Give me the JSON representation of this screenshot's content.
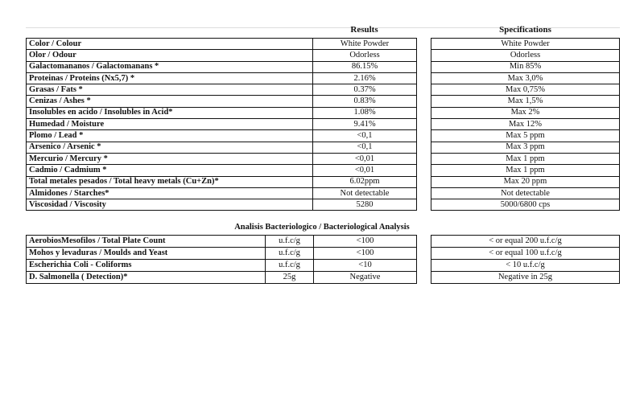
{
  "headers": {
    "results": "Results",
    "specifications": "Specifications"
  },
  "physchem": [
    {
      "parameter": "Color / Colour",
      "result": "White Powder",
      "spec": "White Powder"
    },
    {
      "parameter": "Olor  /  Odour",
      "result": "Odorless",
      "spec": "Odorless"
    },
    {
      "parameter": "Galactomananos / Galactomanans *",
      "result": "86.15%",
      "spec": "Min 85%"
    },
    {
      "parameter": "Proteinas / Proteins (Nx5,7) *",
      "result": "2.16%",
      "spec": "Max 3,0%"
    },
    {
      "parameter": "Grasas / Fats *",
      "result": "0.37%",
      "spec": "Max 0,75%"
    },
    {
      "parameter": "Cenizas / Ashes *",
      "result": "0.83%",
      "spec": "Max 1,5%"
    },
    {
      "parameter": "Insolubles en acido / Insolubles in Acid*",
      "result": "1.08%",
      "spec": "Max 2%"
    },
    {
      "parameter": "Humedad / Moisture",
      "result": "9.41%",
      "spec": "Max 12%"
    },
    {
      "parameter": "Plomo / Lead *",
      "result": "<0,1",
      "spec": "Max 5 ppm"
    },
    {
      "parameter": "Arsenico / Arsenic *",
      "result": "<0,1",
      "spec": "Max 3 ppm"
    },
    {
      "parameter": "Mercurio / Mercury *",
      "result": "<0,01",
      "spec": "Max 1 ppm"
    },
    {
      "parameter": "Cadmio / Cadmium  *",
      "result": "<0,01",
      "spec": "Max 1 ppm"
    },
    {
      "parameter": "Total metales pesados / Total heavy metals (Cu+Zn)*",
      "result": "6.02ppm",
      "spec": "Max 20 ppm"
    },
    {
      "parameter": "Almidones / Starches*",
      "result": "Not detectable",
      "spec": "Not detectable"
    },
    {
      "parameter": "Viscosidad / Viscosity",
      "result": "5280",
      "spec": "5000/6800 cps"
    }
  ],
  "micro_title": "Analisis Bacteriologico / Bacteriological Analysis",
  "micro": [
    {
      "parameter": "AerobiosMesofilos / Total Plate Count",
      "unit": "u.f.c/g",
      "result": "<100",
      "spec": "< or equal 200 u.f.c/g"
    },
    {
      "parameter": "Mohos y levaduras / Moulds and Yeast",
      "unit": "u.f.c/g",
      "result": "<100",
      "spec": "< or equal 100 u.f.c/g"
    },
    {
      "parameter": "Escherichia  Coli - Coliforms",
      "unit": "u.f.c/g",
      "result": "<10",
      "spec": "< 10 u.f.c/g"
    },
    {
      "parameter": "D. Salmonella ( Detection)*",
      "unit": "25g",
      "result": "Negative",
      "spec": "Negative in 25g"
    }
  ]
}
